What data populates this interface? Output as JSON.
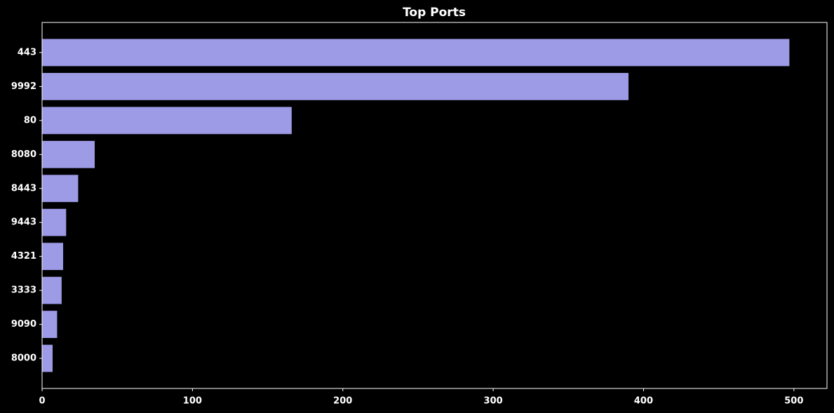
{
  "chart_data": {
    "type": "barh",
    "title": "Top Ports",
    "categories": [
      "443",
      "9992",
      "80",
      "8080",
      "8443",
      "9443",
      "4321",
      "3333",
      "9090",
      "8000"
    ],
    "values": [
      497,
      390,
      166,
      35,
      24,
      16,
      14,
      13,
      10,
      7
    ],
    "color": "#9d9ae6",
    "xlim": [
      0,
      522
    ],
    "xticks": [
      0,
      100,
      200,
      300,
      400,
      500
    ],
    "grid": false
  }
}
